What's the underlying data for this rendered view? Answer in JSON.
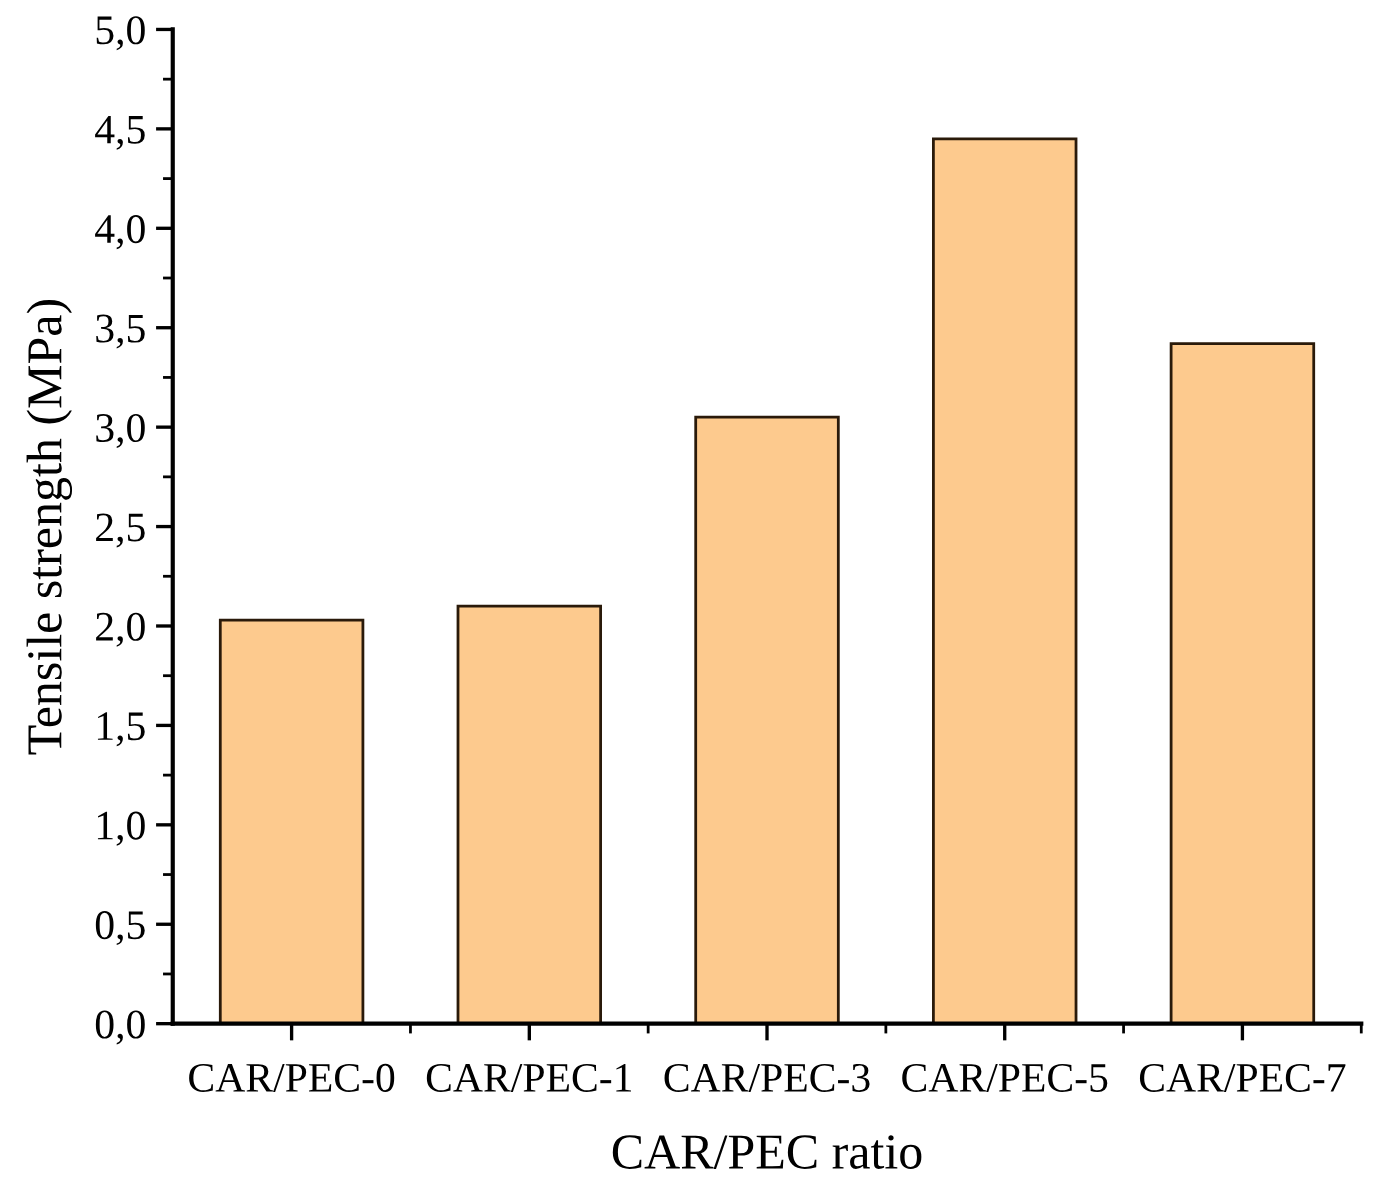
{
  "chart_data": {
    "type": "bar",
    "xlabel": "CAR/PEC ratio",
    "ylabel": "Tensile strength (MPa)",
    "categories": [
      "CAR/PEC-0",
      "CAR/PEC-1",
      "CAR/PEC-3",
      "CAR/PEC-5",
      "CAR/PEC-7"
    ],
    "values": [
      2.03,
      2.1,
      3.05,
      4.45,
      3.42
    ],
    "color": "#fdca8e",
    "ylim": [
      0,
      5
    ],
    "yticks": [
      {
        "value": 0,
        "label": "0,0"
      },
      {
        "value": 0.5,
        "label": "0,5"
      },
      {
        "value": 1,
        "label": "1,0"
      },
      {
        "value": 1.5,
        "label": "1,5"
      },
      {
        "value": 2,
        "label": "2,0"
      },
      {
        "value": 2.5,
        "label": "2,5"
      },
      {
        "value": 3,
        "label": "3,0"
      },
      {
        "value": 3.5,
        "label": "3,5"
      },
      {
        "value": 4,
        "label": "4,0"
      },
      {
        "value": 4.5,
        "label": "4,5"
      },
      {
        "value": 5,
        "label": "5,0"
      }
    ],
    "grid": false,
    "legend": false
  }
}
